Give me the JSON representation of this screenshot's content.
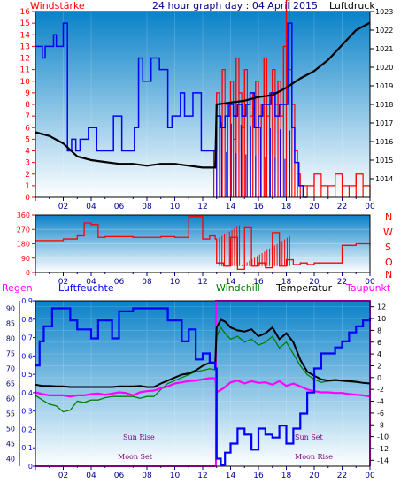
{
  "colors": {
    "plot_top": "#0a82c8",
    "plot_bottom": "#ffffff",
    "border": "#000000",
    "wind_avg": "#0000ff",
    "wind_gust": "#ff0000",
    "wind_dir": "#ff0000",
    "pressure": "#000000",
    "humidity": "#0000ff",
    "rain": "#ff00ff",
    "windchill": "#008000",
    "temperature": "#000000",
    "dewpoint": "#ff00ff",
    "tick_text": "#00008b",
    "red_text": "#ff0000",
    "purple_text": "#800080"
  },
  "header": {
    "title": "24 hour graph day : 04 April 2015",
    "left_label": "Windstärke",
    "right_label": "Luftdruck"
  },
  "compass": [
    "N",
    "W",
    "S",
    "O",
    "N"
  ],
  "bottom_labels": {
    "rain": "Regen",
    "humidity": "Luftfeuchte",
    "windchill": "Windchill",
    "temperature": "Temperatur",
    "dewpoint": "Taupunkt"
  },
  "annotations": {
    "sun_rise": "Sun Rise",
    "moon_set": "Moon Set",
    "sun_set": "Sun Set",
    "moon_rise": "Moon Rise"
  },
  "chart_data": [
    {
      "type": "line",
      "xlabel": "",
      "x_tick_labels": [
        "02",
        "04",
        "06",
        "08",
        "10",
        "12",
        "14",
        "16",
        "18",
        "20",
        "22",
        "00"
      ],
      "left_axis": {
        "label": "Windstärke",
        "ylim": [
          0,
          16
        ],
        "ticks": [
          0,
          1,
          2,
          3,
          4,
          5,
          6,
          7,
          8,
          9,
          10,
          11,
          12,
          13,
          14,
          15,
          16
        ]
      },
      "right_axis": {
        "label": "Luftdruck",
        "ylim": [
          1013,
          1023
        ],
        "ticks": [
          1014,
          1015,
          1016,
          1017,
          1018,
          1019,
          1020,
          1021,
          1022,
          1023
        ]
      },
      "series": [
        {
          "name": "Windstärke",
          "axis": "left",
          "x": [
            0.0,
            0.3,
            0.5,
            0.7,
            1.0,
            1.3,
            1.5,
            1.8,
            2.0,
            2.2,
            2.3,
            2.6,
            2.9,
            3.2,
            3.5,
            3.8,
            4.1,
            4.4,
            4.7,
            5.0,
            5.3,
            5.6,
            5.9,
            6.2,
            6.5,
            6.8,
            7.1,
            7.4,
            7.7,
            8.0,
            8.3,
            8.6,
            8.9,
            9.2,
            9.5,
            9.8,
            10.1,
            10.4,
            10.7,
            11.0,
            11.3,
            11.6,
            11.9,
            12.2,
            12.5,
            12.8,
            13.0,
            13.3,
            13.6,
            13.9,
            14.2,
            14.5,
            14.8,
            15.1,
            15.4,
            15.7,
            16.0,
            16.3,
            16.6,
            16.9,
            17.2,
            17.5,
            17.8,
            18.1,
            18.4,
            18.6,
            18.9,
            19.2,
            19.5
          ],
          "values": [
            13,
            13,
            12,
            13,
            13,
            14,
            13,
            13,
            15,
            15,
            4,
            5,
            4,
            5,
            5,
            6,
            6,
            4,
            4,
            4,
            4,
            7,
            7,
            4,
            4,
            4,
            6,
            12,
            10,
            10,
            12,
            12,
            11,
            11,
            6,
            7,
            7,
            9,
            7,
            7,
            9,
            9,
            4,
            4,
            4,
            4,
            7,
            6,
            7,
            8,
            7,
            8,
            7,
            8,
            9,
            6,
            7,
            8,
            8,
            9,
            7,
            8,
            8,
            15,
            6,
            3,
            1,
            0,
            0
          ]
        },
        {
          "name": "Böen",
          "axis": "left",
          "x": [
            12.8,
            13.0,
            13.2,
            13.4,
            13.6,
            13.8,
            14.0,
            14.2,
            14.4,
            14.6,
            14.8,
            15.0,
            15.2,
            15.4,
            15.6,
            15.8,
            16.0,
            16.2,
            16.4,
            16.6,
            16.8,
            17.0,
            17.2,
            17.4,
            17.6,
            17.8,
            18.0,
            18.2,
            18.4,
            18.6,
            18.8,
            19.0,
            19.5,
            20.0,
            20.5,
            21.0,
            21.5,
            22.0,
            22.5,
            23.0,
            23.5,
            24.0
          ],
          "values": [
            4,
            9,
            6,
            11,
            8,
            7,
            10,
            5,
            12,
            9,
            6,
            11,
            8,
            7,
            9,
            10,
            6,
            8,
            12,
            7,
            9,
            11,
            8,
            10,
            7,
            13,
            17,
            11,
            8,
            4,
            2,
            1,
            1,
            2,
            1,
            1,
            2,
            1,
            1,
            2,
            1,
            1
          ]
        },
        {
          "name": "Luftdruck",
          "axis": "right",
          "x": [
            0,
            1,
            2,
            3,
            4,
            5,
            6,
            7,
            8,
            9,
            10,
            11,
            12,
            12.9,
            13.0,
            14,
            15,
            16,
            17,
            18,
            19,
            20,
            21,
            22,
            23,
            24
          ],
          "values": [
            1016.5,
            1016.3,
            1015.9,
            1015.2,
            1015.0,
            1014.9,
            1014.8,
            1014.8,
            1014.7,
            1014.8,
            1014.8,
            1014.7,
            1014.6,
            1014.6,
            1018.0,
            1018.1,
            1018.2,
            1018.4,
            1018.5,
            1018.9,
            1019.4,
            1019.8,
            1020.4,
            1021.2,
            1022.0,
            1022.4
          ]
        }
      ]
    },
    {
      "type": "line",
      "ylim": [
        0,
        360
      ],
      "y_ticks": [
        0,
        90,
        180,
        270,
        360
      ],
      "x_tick_labels": [
        "02",
        "04",
        "06",
        "08",
        "10",
        "12",
        "14",
        "16",
        "18",
        "20",
        "22",
        "00"
      ],
      "series": [
        {
          "name": "Windrichtung",
          "x": [
            0,
            1,
            2,
            3,
            3.5,
            4,
            4.5,
            5,
            6,
            7,
            8,
            9,
            10,
            10.5,
            11,
            11.5,
            12,
            12.5,
            12.9,
            13.0,
            13.5,
            14,
            14.5,
            15,
            15.5,
            16,
            16.5,
            17,
            17.5,
            18,
            18.5,
            19,
            19.5,
            20,
            20.5,
            21,
            21.5,
            22,
            22.5,
            23,
            23.5,
            24
          ],
          "values": [
            200,
            200,
            210,
            230,
            310,
            300,
            220,
            225,
            225,
            220,
            220,
            225,
            220,
            220,
            350,
            350,
            210,
            230,
            210,
            60,
            40,
            220,
            20,
            280,
            40,
            60,
            30,
            250,
            40,
            80,
            50,
            60,
            50,
            60,
            60,
            60,
            60,
            170,
            170,
            180,
            180,
            170
          ]
        }
      ]
    },
    {
      "type": "line",
      "x_tick_labels": [
        "02",
        "04",
        "06",
        "08",
        "10",
        "12",
        "14",
        "16",
        "18",
        "20",
        "22",
        "00"
      ],
      "axes": {
        "rain": {
          "label": "Regen",
          "ylim": [
            0,
            0.9
          ],
          "ticks": [
            0,
            0.1,
            0.2,
            0.3,
            0.4,
            0.5,
            0.6,
            0.7,
            0.8,
            0.9
          ]
        },
        "humidity": {
          "label": "Luftfeuchte",
          "ylim": [
            37.5,
            92.5
          ],
          "ticks": [
            40,
            45,
            50,
            55,
            60,
            65,
            70,
            75,
            80,
            85,
            90
          ]
        },
        "temperature": {
          "label": "Temperatur",
          "ylim": [
            -15,
            13
          ],
          "ticks": [
            -14,
            -12,
            -10,
            -8,
            -6,
            -4,
            -2,
            0,
            2,
            4,
            6,
            8,
            10,
            12
          ]
        }
      },
      "series": [
        {
          "name": "Luftfeuchte",
          "axis": "humidity",
          "x": [
            0,
            0.3,
            0.6,
            0.9,
            1.2,
            1.5,
            2,
            2.5,
            3,
            3.5,
            4,
            4.5,
            5,
            5.5,
            6,
            6.5,
            7,
            7.5,
            8,
            8.5,
            9,
            9.5,
            10,
            10.5,
            11,
            11.5,
            12,
            12.5,
            12.9,
            13.0,
            13.3,
            13.6,
            14,
            14.5,
            15,
            15.5,
            16,
            16.5,
            17,
            17.5,
            18,
            18.5,
            19,
            19.5,
            20,
            20.5,
            21,
            21.5,
            22,
            22.5,
            23,
            23.5,
            24
          ],
          "values": [
            71,
            79,
            84,
            84,
            90,
            90,
            90,
            86,
            83,
            83,
            80,
            86,
            86,
            80,
            89,
            89,
            90,
            90,
            90,
            90,
            90,
            86,
            86,
            79,
            83,
            73,
            75,
            72,
            70,
            40,
            38,
            42,
            45,
            50,
            48,
            43,
            50,
            48,
            47,
            51,
            45,
            50,
            55,
            62,
            70,
            75,
            75,
            77,
            79,
            82,
            84,
            86,
            87
          ]
        },
        {
          "name": "Temperatur",
          "axis": "temperature",
          "x": [
            0,
            0.5,
            1,
            1.5,
            2,
            2.5,
            3,
            3.5,
            4,
            4.5,
            5,
            5.5,
            6,
            6.5,
            7,
            7.5,
            8,
            8.5,
            9,
            9.5,
            10,
            10.5,
            11,
            11.5,
            12,
            12.5,
            12.9,
            13.0,
            13.3,
            13.6,
            14,
            14.5,
            15,
            15.5,
            16,
            16.5,
            17,
            17.5,
            18,
            18.5,
            19,
            19.5,
            20,
            20.5,
            21,
            21.5,
            22,
            22.5,
            23,
            23.5,
            24
          ],
          "values": [
            -1.2,
            -1.4,
            -1.4,
            -1.5,
            -1.5,
            -1.6,
            -1.6,
            -1.6,
            -1.6,
            -1.6,
            -1.6,
            -1.6,
            -1.5,
            -1.5,
            -1.5,
            -1.4,
            -1.6,
            -1.6,
            -1.0,
            -0.5,
            0,
            0.5,
            0.7,
            1.2,
            2.0,
            2.5,
            2.4,
            8.5,
            9.8,
            9.5,
            8.5,
            8.0,
            7.8,
            8.2,
            7.0,
            7.5,
            8.5,
            6.5,
            7.5,
            6.0,
            3.0,
            1.0,
            0.3,
            -0.3,
            -0.5,
            -0.4,
            -0.5,
            -0.6,
            -0.7,
            -0.9,
            -1.0
          ]
        },
        {
          "name": "Windchill",
          "axis": "temperature",
          "x": [
            0,
            0.5,
            1,
            1.5,
            2,
            2.5,
            3,
            3.5,
            4,
            4.5,
            5,
            5.5,
            6,
            6.5,
            7,
            7.5,
            8,
            8.5,
            9,
            9.5,
            10,
            10.5,
            11,
            11.5,
            12,
            12.5,
            12.9,
            13.0,
            13.3,
            13.6,
            14,
            14.5,
            15,
            15.5,
            16,
            16.5,
            17,
            17.5,
            18,
            18.5,
            19,
            19.5,
            20,
            20.5,
            21,
            21.5,
            22,
            22.5,
            23,
            23.5,
            24
          ],
          "values": [
            -3.0,
            -3.8,
            -4.5,
            -4.8,
            -5.8,
            -5.5,
            -4.0,
            -4.2,
            -3.8,
            -3.8,
            -3.4,
            -3.2,
            -3.2,
            -3.2,
            -3.2,
            -3.5,
            -3.2,
            -3.2,
            -2.0,
            -1.0,
            -0.5,
            0,
            0.5,
            1.0,
            1.2,
            1.5,
            1.3,
            7.0,
            8.5,
            7.5,
            6.5,
            7.0,
            6.0,
            6.5,
            5.5,
            6.0,
            7.0,
            5.0,
            6.0,
            4.0,
            2.0,
            0.5,
            -0.3,
            -0.8,
            -0.6,
            -0.5,
            -0.6,
            -0.7,
            -0.8,
            -0.9,
            -1.0
          ]
        },
        {
          "name": "Taupunkt",
          "axis": "temperature",
          "x": [
            0,
            0.5,
            1,
            1.5,
            2,
            2.5,
            3,
            3.5,
            4,
            4.5,
            5,
            5.5,
            6,
            6.5,
            7,
            7.5,
            8,
            8.5,
            9,
            9.5,
            10,
            10.5,
            11,
            11.5,
            12,
            12.5,
            12.9,
            13.0,
            13.5,
            14,
            14.5,
            15,
            15.5,
            16,
            16.5,
            17,
            17.5,
            18,
            18.5,
            19,
            19.5,
            20,
            20.5,
            21,
            21.5,
            22,
            22.5,
            23,
            23.5,
            24
          ],
          "values": [
            -2.5,
            -2.8,
            -3.0,
            -3.0,
            -3.0,
            -3.2,
            -3.0,
            -3.0,
            -2.8,
            -2.7,
            -2.9,
            -2.7,
            -2.5,
            -2.6,
            -3.0,
            -2.5,
            -2.3,
            -2.2,
            -1.8,
            -1.5,
            -1.0,
            -0.8,
            -0.6,
            -0.5,
            -0.3,
            -0.1,
            -0.1,
            -2.5,
            -1.8,
            -0.8,
            -0.5,
            -1.0,
            -0.6,
            -0.9,
            -0.8,
            -1.2,
            -0.6,
            -1.4,
            -1.0,
            -1.5,
            -2.0,
            -2.3,
            -2.5,
            -2.5,
            -2.6,
            -2.6,
            -2.8,
            -2.9,
            -3.0,
            -3.2
          ]
        },
        {
          "name": "Regen",
          "axis": "rain",
          "x": [
            0,
            12.9,
            12.95,
            23.8,
            24
          ],
          "values": [
            0,
            0,
            0.9,
            0.9,
            0
          ]
        }
      ]
    }
  ]
}
